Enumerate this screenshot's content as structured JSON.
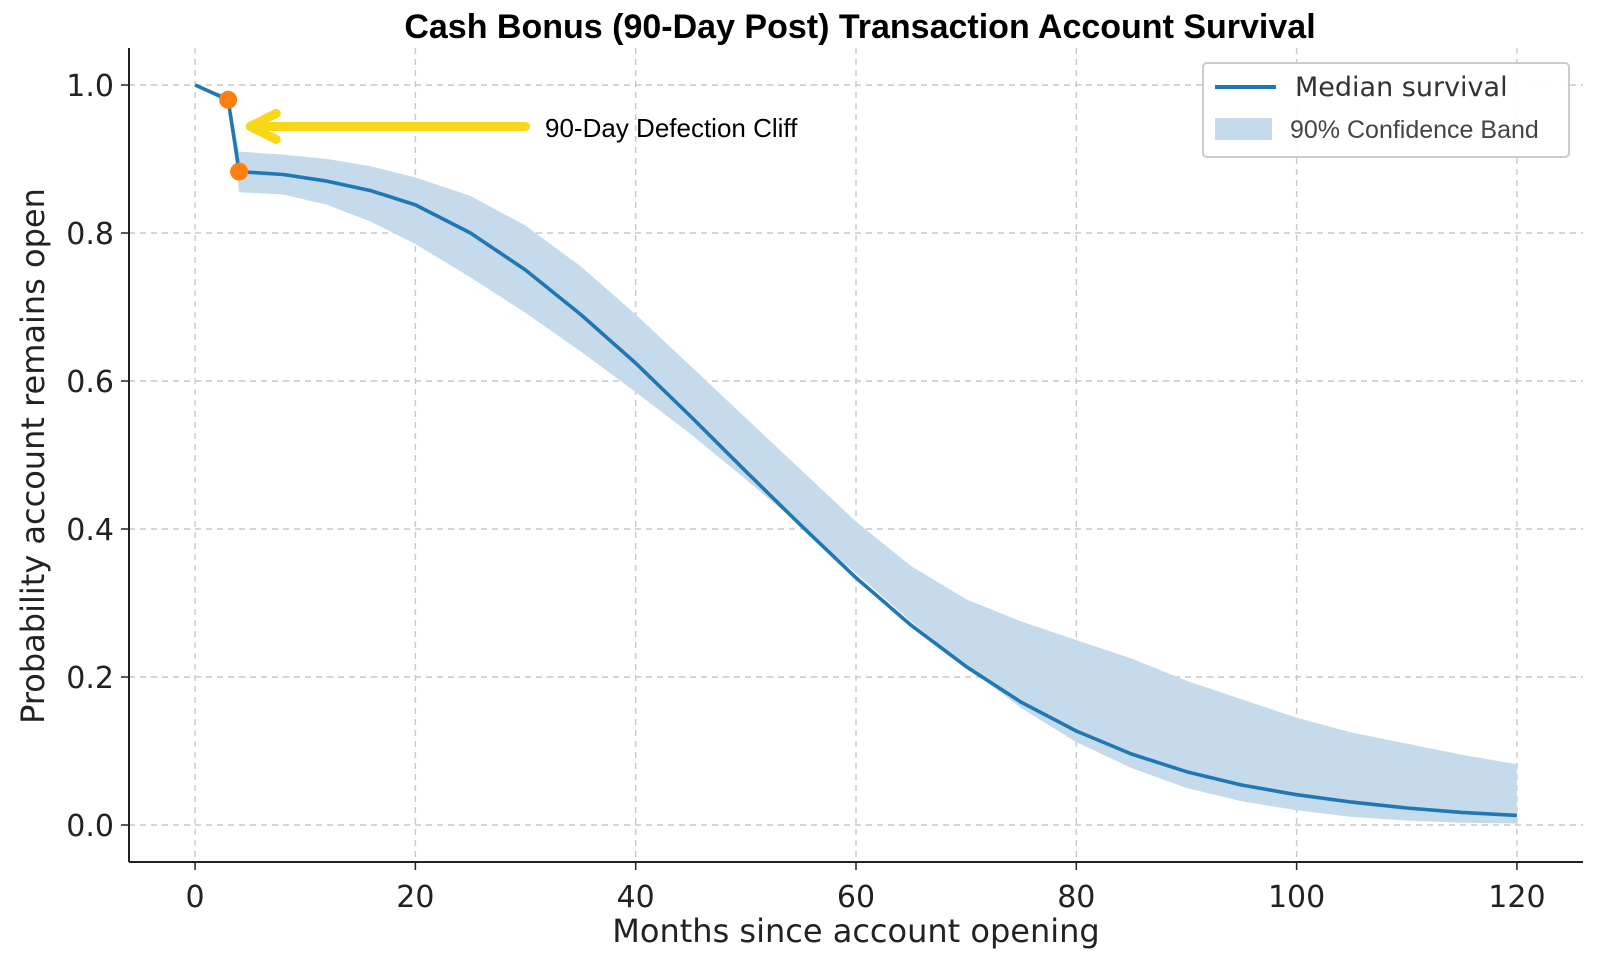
{
  "chart_data": {
    "type": "line",
    "title": "Cash Bonus (90-Day Post) Transaction Account Survival",
    "xlabel": "Months since account opening",
    "ylabel": "Probability account remains open",
    "xlim": [
      -6,
      126
    ],
    "ylim": [
      -0.05,
      1.05
    ],
    "xticks": [
      0,
      20,
      40,
      60,
      80,
      100,
      120
    ],
    "xtick_labels": [
      "0",
      "20",
      "40",
      "60",
      "80",
      "100",
      "120"
    ],
    "yticks": [
      0.0,
      0.2,
      0.4,
      0.6,
      0.8,
      1.0
    ],
    "ytick_labels": [
      "0.0",
      "0.2",
      "0.4",
      "0.6",
      "0.8",
      "1.0"
    ],
    "grid": true,
    "legend_position": "top-right",
    "colors": {
      "median": "#1f77b4",
      "band": "#c5dbec",
      "markers": "#ff7f0e",
      "arrow": "#f7d716"
    },
    "series": [
      {
        "name": "Median survival",
        "x": [
          0,
          3,
          4,
          8,
          12,
          16,
          20,
          25,
          30,
          35,
          40,
          45,
          50,
          55,
          60,
          65,
          70,
          75,
          80,
          85,
          90,
          95,
          100,
          105,
          110,
          115,
          120
        ],
        "y": [
          1.0,
          0.98,
          0.883,
          0.879,
          0.87,
          0.857,
          0.838,
          0.8,
          0.75,
          0.69,
          0.624,
          0.552,
          0.478,
          0.405,
          0.334,
          0.27,
          0.214,
          0.166,
          0.127,
          0.096,
          0.072,
          0.054,
          0.041,
          0.031,
          0.023,
          0.017,
          0.013
        ]
      },
      {
        "name": "90% Confidence Band",
        "x": [
          0,
          3,
          4,
          8,
          12,
          16,
          20,
          25,
          30,
          35,
          40,
          45,
          50,
          55,
          60,
          65,
          70,
          75,
          80,
          85,
          90,
          95,
          100,
          105,
          110,
          115,
          120
        ],
        "lower": [
          1.0,
          0.975,
          0.855,
          0.852,
          0.838,
          0.815,
          0.785,
          0.74,
          0.692,
          0.64,
          0.585,
          0.528,
          0.467,
          0.404,
          0.34,
          0.275,
          0.214,
          0.158,
          0.112,
          0.077,
          0.05,
          0.032,
          0.02,
          0.011,
          0.006,
          0.003,
          0.002
        ],
        "upper": [
          1.0,
          0.985,
          0.91,
          0.906,
          0.9,
          0.89,
          0.875,
          0.85,
          0.81,
          0.755,
          0.69,
          0.62,
          0.55,
          0.48,
          0.41,
          0.35,
          0.305,
          0.275,
          0.25,
          0.225,
          0.195,
          0.17,
          0.145,
          0.125,
          0.11,
          0.095,
          0.082
        ]
      }
    ],
    "markers": [
      {
        "x": 3,
        "y": 0.98
      },
      {
        "x": 4,
        "y": 0.883
      }
    ],
    "annotations": [
      {
        "text": "90-Day Defection Cliff",
        "arrow_from": {
          "x": 30,
          "y": 0.944
        },
        "arrow_to": {
          "x": 5,
          "y": 0.944
        }
      }
    ],
    "legend": [
      {
        "label": "Median survival",
        "kind": "line"
      },
      {
        "label": "90% Confidence Band",
        "kind": "patch"
      }
    ]
  }
}
